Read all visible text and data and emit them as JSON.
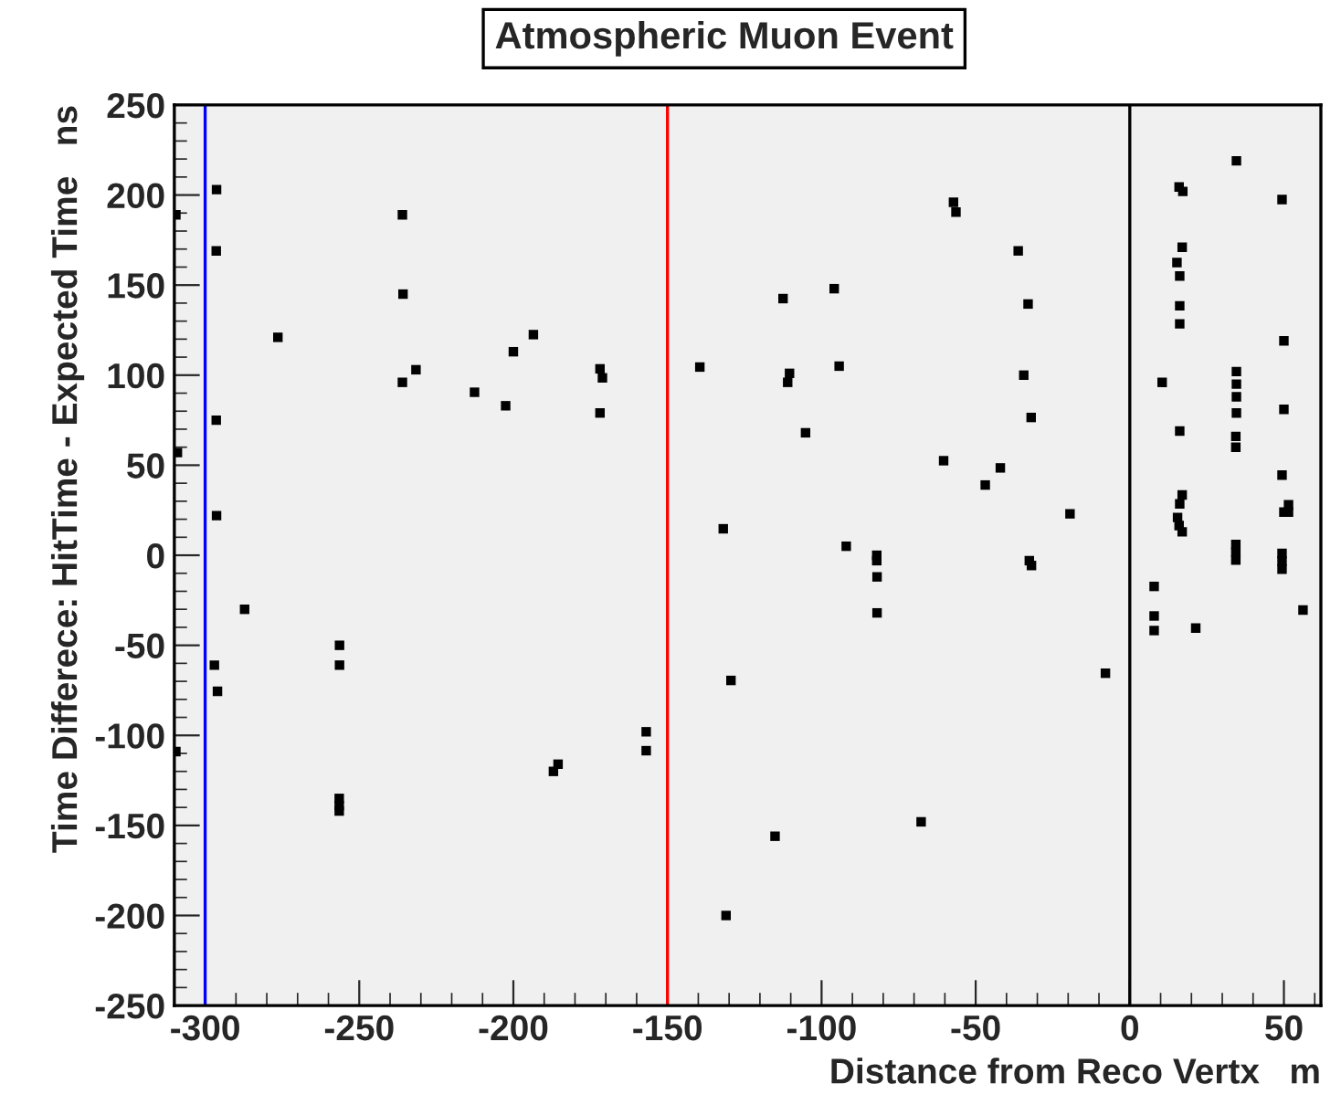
{
  "chart_data": {
    "type": "scatter",
    "title": "Atmospheric Muon Event",
    "xlabel": "Distance from Reco Vertx   m",
    "ylabel": "Time Differece: HitTime - Expected Time   ns",
    "xlim": [
      -310,
      62
    ],
    "ylim": [
      -250,
      250
    ],
    "xticks": [
      -300,
      -250,
      -200,
      -150,
      -100,
      -50,
      0,
      50
    ],
    "yticks": [
      -250,
      -200,
      -150,
      -100,
      -50,
      0,
      50,
      100,
      150,
      200,
      250
    ],
    "grid": false,
    "marker": "square",
    "ref_lines": [
      {
        "axis": "x",
        "value": -300,
        "color": "#0000ff"
      },
      {
        "axis": "x",
        "value": -150,
        "color": "#ff0000"
      },
      {
        "axis": "x",
        "value": 0,
        "color": "#000000"
      }
    ],
    "series": [
      {
        "color": "#000000",
        "x": [
          -296.3,
          -309.5,
          -236,
          -296.4,
          -235.8,
          -276.4,
          -193.5,
          -200,
          -231.6,
          -236,
          -212.6,
          -202.5,
          -296.4,
          -309,
          -296.3,
          -287.2,
          -256.4,
          -256.4,
          -297,
          -296,
          -309.5,
          -187,
          -185.5,
          -256.5,
          -256.5,
          -256.5,
          -171.9,
          -171.1,
          -171.9,
          -112.5,
          -95.9,
          -139.5,
          -110.4,
          -111,
          -94.3,
          -105.2,
          -60.4,
          -131.9,
          -92,
          -82.1,
          -82.1,
          -82,
          -82,
          -129.4,
          -156.9,
          -156.9,
          -115.1,
          -67.7,
          -131,
          -57.2,
          -56.4,
          -36.2,
          -33,
          -34.4,
          -32,
          -42,
          -46.9,
          -19.4,
          -32.6,
          -31.9,
          -7.9,
          34.6,
          16,
          17.2,
          49.4,
          17,
          15.3,
          16.2,
          16.2,
          16.2,
          50,
          10.5,
          34.6,
          34.6,
          34.6,
          34.6,
          50,
          16.2,
          34.4,
          34.4,
          49.4,
          17,
          16.2,
          15.5,
          16,
          17,
          50,
          51.5,
          51.5,
          34.4,
          34.4,
          34.4,
          49.4,
          49.4,
          49.4,
          7.9,
          7.9,
          7.9,
          21.4,
          56.2
        ],
        "values": [
          203,
          189,
          189,
          169,
          145,
          121,
          122.5,
          113,
          103,
          96,
          90.5,
          83,
          75,
          57,
          22,
          -30,
          -50,
          -61,
          -61,
          -75.5,
          -109,
          -120,
          -116,
          -135,
          -139,
          -142,
          103.5,
          98.5,
          79,
          142.5,
          148,
          104.5,
          101,
          96,
          105,
          68,
          52.5,
          14.7,
          5,
          0,
          -3,
          -12,
          -32,
          -69.5,
          -98,
          -108.5,
          -156,
          -148,
          -200,
          196,
          190.5,
          169,
          139.5,
          100,
          76.5,
          48.5,
          39,
          23,
          -3,
          -5.7,
          -65.5,
          219,
          204.5,
          202,
          197.5,
          171,
          162.5,
          155,
          138.5,
          128.5,
          119,
          96,
          102,
          95,
          88,
          79,
          81,
          69,
          66,
          60,
          44.5,
          33.5,
          28.5,
          21,
          16.5,
          13,
          24,
          24,
          28,
          6,
          1.7,
          -2.7,
          1,
          -3.3,
          -7.7,
          -17.3,
          -33.7,
          -41.8,
          -40.4,
          -30.4
        ]
      }
    ]
  }
}
